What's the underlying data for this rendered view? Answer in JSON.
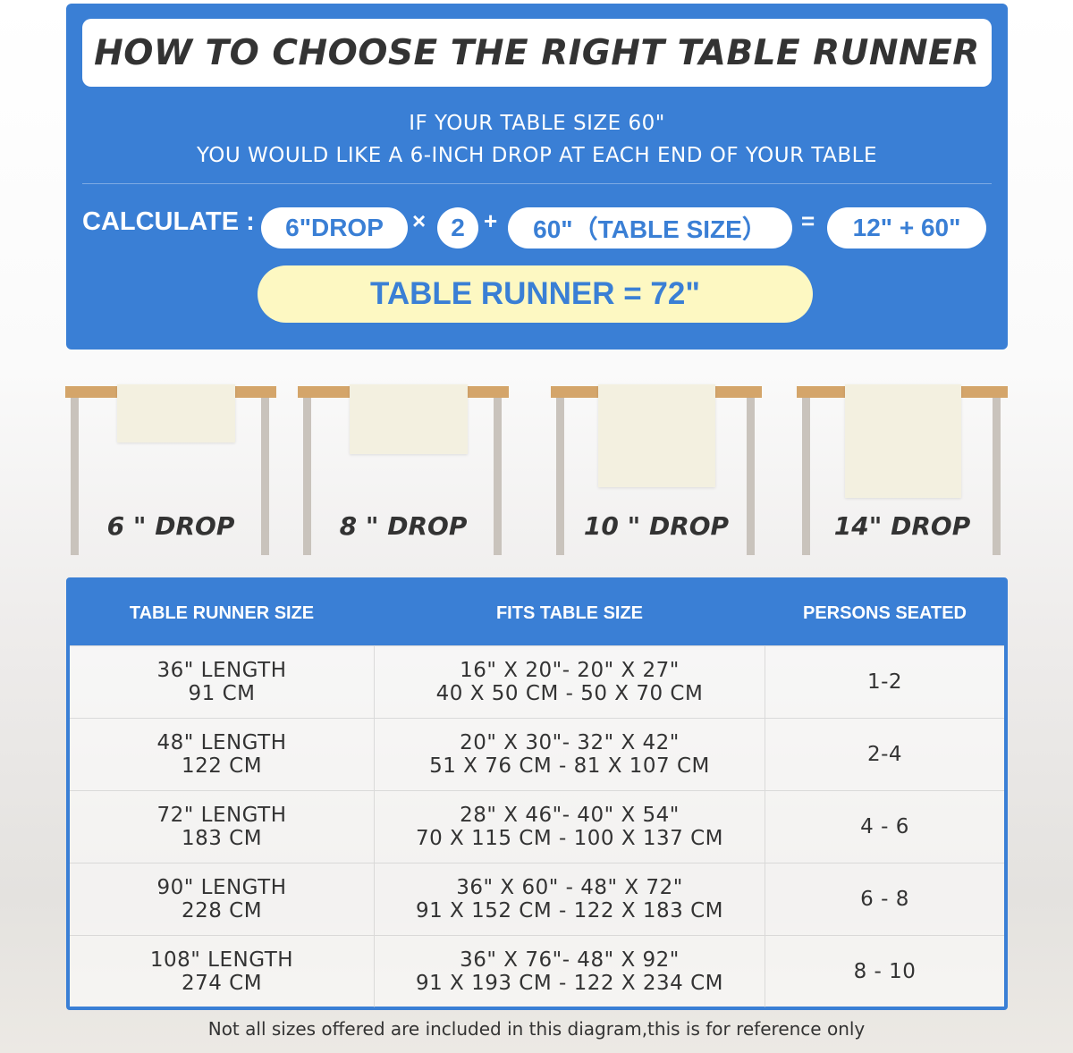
{
  "header": {
    "title": "HOW TO CHOOSE THE RIGHT TABLE RUNNER",
    "line1": "IF YOUR TABLE SIZE 60\"",
    "line2": "YOU WOULD LIKE A 6-INCH DROP AT EACH END OF YOUR TABLE"
  },
  "calc": {
    "label": "CALCULATE :",
    "drop": "6\"DROP",
    "times": "×",
    "multiplier": "2",
    "plus": "+",
    "table": "60\"（TABLE SIZE）",
    "equals": "=",
    "sum": "12\" + 60\"",
    "result": "TABLE RUNNER = 72\""
  },
  "drops": [
    {
      "label": "6 \" DROP",
      "inches": 6
    },
    {
      "label": "8 \" DROP",
      "inches": 8
    },
    {
      "label": "10 \" DROP",
      "inches": 10
    },
    {
      "label": "14\" DROP",
      "inches": 14
    }
  ],
  "table": {
    "headers": [
      "TABLE RUNNER SIZE",
      "FITS TABLE SIZE",
      "PERSONS SEATED"
    ],
    "rows": [
      {
        "size": [
          "36\" LENGTH",
          "91 CM"
        ],
        "fits": [
          "16\" X 20\"- 20\" X 27\"",
          "40 X 50 CM - 50 X 70 CM"
        ],
        "persons": "1-2"
      },
      {
        "size": [
          "48\" LENGTH",
          "122 CM"
        ],
        "fits": [
          "20\" X 30\"- 32\" X 42\"",
          "51 X 76 CM - 81 X 107 CM"
        ],
        "persons": "2-4"
      },
      {
        "size": [
          "72\" LENGTH",
          "183 CM"
        ],
        "fits": [
          "28\" X 46\"- 40\" X 54\"",
          "70 X 115 CM - 100 X 137 CM"
        ],
        "persons": "4 - 6"
      },
      {
        "size": [
          "90\" LENGTH",
          "228 CM"
        ],
        "fits": [
          "36\" X 60\" - 48\" X 72\"",
          "91 X 152 CM - 122 X 183 CM"
        ],
        "persons": "6 - 8"
      },
      {
        "size": [
          "108\" LENGTH",
          "274 CM"
        ],
        "fits": [
          "36\" X 76\"- 48\" X 92\"",
          "91 X 193 CM - 122 X 234 CM"
        ],
        "persons": "8 - 10"
      }
    ]
  },
  "note": "Not all sizes offered are included in this diagram,this is for reference only",
  "colors": {
    "blue": "#3a7fd5",
    "yellow": "#fdf8c2",
    "wood": "#d4a56a",
    "runner": "#f3f0e0"
  }
}
